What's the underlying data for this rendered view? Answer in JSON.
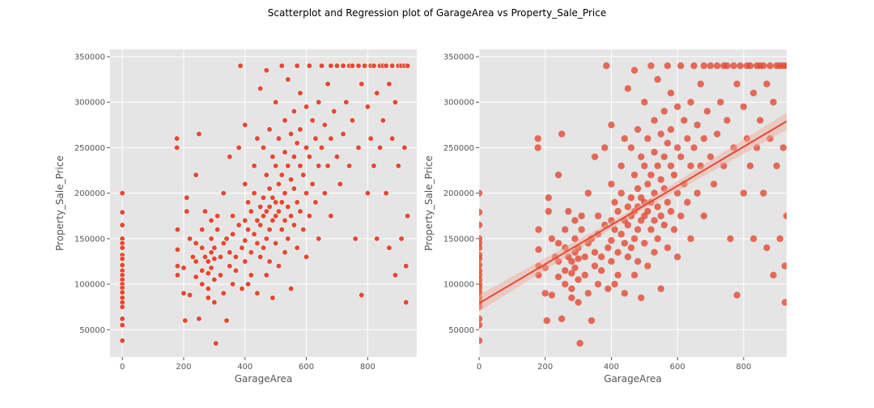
{
  "figure": {
    "title": "Scatterplot and Regression plot of GarageArea vs Property_Sale_Price"
  },
  "style": {
    "panel_bg": "#e5e5e5",
    "grid_color": "#ffffff",
    "marker_color": "#e24a33",
    "ci_color": "#f0a697",
    "tick_color": "#555555"
  },
  "chart_data": [
    {
      "type": "scatter",
      "xlabel": "GarageArea",
      "ylabel": "Property_Sale_Price",
      "xlim": [
        -40,
        960
      ],
      "ylim": [
        20000,
        358000
      ],
      "xticks": [
        0,
        200,
        400,
        600,
        800
      ],
      "yticks": [
        50000,
        100000,
        150000,
        200000,
        250000,
        300000,
        350000
      ],
      "grid": true,
      "marker": "white-edged dots",
      "points": []
    },
    {
      "type": "scatter",
      "xlabel": "GarageArea",
      "ylabel": "Property_Sale_Price",
      "xlim": [
        0,
        930
      ],
      "ylim": [
        20000,
        358000
      ],
      "xticks": [
        0,
        200,
        400,
        600,
        800
      ],
      "yticks": [
        50000,
        100000,
        150000,
        200000,
        250000,
        300000,
        350000
      ],
      "grid": true,
      "marker": "semi-transparent dots",
      "regression": {
        "intercept": 79000,
        "slope": 215
      },
      "points": []
    }
  ],
  "sample": {
    "points": [
      [
        0,
        200000
      ],
      [
        0,
        179000
      ],
      [
        0,
        165000
      ],
      [
        0,
        150000
      ],
      [
        0,
        145000
      ],
      [
        0,
        140000
      ],
      [
        0,
        132000
      ],
      [
        0,
        128000
      ],
      [
        0,
        121000
      ],
      [
        0,
        115000
      ],
      [
        0,
        110000
      ],
      [
        0,
        105000
      ],
      [
        0,
        100000
      ],
      [
        0,
        96000
      ],
      [
        0,
        91000
      ],
      [
        0,
        85000
      ],
      [
        0,
        80000
      ],
      [
        0,
        75000
      ],
      [
        0,
        62000
      ],
      [
        0,
        55000
      ],
      [
        0,
        38000
      ],
      [
        180,
        160000
      ],
      [
        180,
        138000
      ],
      [
        180,
        120000
      ],
      [
        180,
        110000
      ],
      [
        178,
        260000
      ],
      [
        178,
        250000
      ],
      [
        200,
        118000
      ],
      [
        200,
        90000
      ],
      [
        205,
        60000
      ],
      [
        210,
        195000
      ],
      [
        210,
        180000
      ],
      [
        220,
        150000
      ],
      [
        220,
        88000
      ],
      [
        230,
        130000
      ],
      [
        240,
        220000
      ],
      [
        240,
        145000
      ],
      [
        240,
        125000
      ],
      [
        240,
        108000
      ],
      [
        250,
        265000
      ],
      [
        250,
        62000
      ],
      [
        260,
        160000
      ],
      [
        260,
        140000
      ],
      [
        260,
        115000
      ],
      [
        260,
        100000
      ],
      [
        270,
        180000
      ],
      [
        270,
        130000
      ],
      [
        280,
        125000
      ],
      [
        280,
        112000
      ],
      [
        280,
        95000
      ],
      [
        280,
        85000
      ],
      [
        290,
        170000
      ],
      [
        290,
        150000
      ],
      [
        290,
        135000
      ],
      [
        290,
        118000
      ],
      [
        300,
        140000
      ],
      [
        300,
        128000
      ],
      [
        300,
        105000
      ],
      [
        300,
        80000
      ],
      [
        305,
        35000
      ],
      [
        310,
        175000
      ],
      [
        310,
        160000
      ],
      [
        320,
        130000
      ],
      [
        320,
        110000
      ],
      [
        330,
        200000
      ],
      [
        330,
        145000
      ],
      [
        330,
        90000
      ],
      [
        340,
        150000
      ],
      [
        340,
        60000
      ],
      [
        350,
        240000
      ],
      [
        350,
        135000
      ],
      [
        350,
        120000
      ],
      [
        360,
        175000
      ],
      [
        360,
        155000
      ],
      [
        360,
        100000
      ],
      [
        370,
        130000
      ],
      [
        370,
        115000
      ],
      [
        380,
        250000
      ],
      [
        380,
        165000
      ],
      [
        385,
        340000
      ],
      [
        390,
        140000
      ],
      [
        390,
        95000
      ],
      [
        400,
        275000
      ],
      [
        400,
        210000
      ],
      [
        400,
        170000
      ],
      [
        400,
        148000
      ],
      [
        400,
        125000
      ],
      [
        410,
        190000
      ],
      [
        410,
        160000
      ],
      [
        410,
        100000
      ],
      [
        420,
        180000
      ],
      [
        420,
        135000
      ],
      [
        420,
        110000
      ],
      [
        430,
        230000
      ],
      [
        430,
        200000
      ],
      [
        430,
        155000
      ],
      [
        440,
        260000
      ],
      [
        440,
        170000
      ],
      [
        440,
        145000
      ],
      [
        440,
        90000
      ],
      [
        450,
        315000
      ],
      [
        450,
        185000
      ],
      [
        450,
        165000
      ],
      [
        450,
        130000
      ],
      [
        460,
        250000
      ],
      [
        460,
        195000
      ],
      [
        460,
        175000
      ],
      [
        460,
        140000
      ],
      [
        470,
        335000
      ],
      [
        470,
        220000
      ],
      [
        470,
        180000
      ],
      [
        470,
        150000
      ],
      [
        470,
        110000
      ],
      [
        480,
        270000
      ],
      [
        480,
        205000
      ],
      [
        480,
        185000
      ],
      [
        480,
        160000
      ],
      [
        480,
        125000
      ],
      [
        490,
        240000
      ],
      [
        490,
        195000
      ],
      [
        490,
        170000
      ],
      [
        490,
        85000
      ],
      [
        500,
        300000
      ],
      [
        500,
        230000
      ],
      [
        500,
        190000
      ],
      [
        500,
        175000
      ],
      [
        500,
        145000
      ],
      [
        510,
        260000
      ],
      [
        510,
        210000
      ],
      [
        510,
        180000
      ],
      [
        510,
        120000
      ],
      [
        520,
        340000
      ],
      [
        520,
        220000
      ],
      [
        520,
        190000
      ],
      [
        520,
        160000
      ],
      [
        530,
        280000
      ],
      [
        530,
        245000
      ],
      [
        530,
        200000
      ],
      [
        530,
        170000
      ],
      [
        530,
        135000
      ],
      [
        540,
        325000
      ],
      [
        540,
        230000
      ],
      [
        540,
        185000
      ],
      [
        540,
        150000
      ],
      [
        550,
        265000
      ],
      [
        550,
        215000
      ],
      [
        550,
        175000
      ],
      [
        550,
        95000
      ],
      [
        560,
        290000
      ],
      [
        560,
        240000
      ],
      [
        560,
        205000
      ],
      [
        560,
        165000
      ],
      [
        570,
        340000
      ],
      [
        570,
        255000
      ],
      [
        570,
        190000
      ],
      [
        570,
        140000
      ],
      [
        580,
        310000
      ],
      [
        580,
        270000
      ],
      [
        580,
        230000
      ],
      [
        580,
        180000
      ],
      [
        590,
        220000
      ],
      [
        590,
        160000
      ],
      [
        600,
        295000
      ],
      [
        600,
        250000
      ],
      [
        600,
        200000
      ],
      [
        600,
        130000
      ],
      [
        610,
        340000
      ],
      [
        610,
        240000
      ],
      [
        610,
        175000
      ],
      [
        620,
        280000
      ],
      [
        620,
        210000
      ],
      [
        630,
        260000
      ],
      [
        630,
        190000
      ],
      [
        640,
        300000
      ],
      [
        640,
        230000
      ],
      [
        640,
        150000
      ],
      [
        650,
        340000
      ],
      [
        650,
        250000
      ],
      [
        660,
        275000
      ],
      [
        660,
        200000
      ],
      [
        670,
        320000
      ],
      [
        670,
        230000
      ],
      [
        680,
        340000
      ],
      [
        680,
        260000
      ],
      [
        680,
        175000
      ],
      [
        690,
        290000
      ],
      [
        700,
        340000
      ],
      [
        700,
        240000
      ],
      [
        710,
        210000
      ],
      [
        720,
        340000
      ],
      [
        720,
        265000
      ],
      [
        730,
        300000
      ],
      [
        740,
        340000
      ],
      [
        740,
        230000
      ],
      [
        750,
        340000
      ],
      [
        750,
        280000
      ],
      [
        760,
        150000
      ],
      [
        770,
        340000
      ],
      [
        770,
        250000
      ],
      [
        780,
        320000
      ],
      [
        780,
        88000
      ],
      [
        790,
        340000
      ],
      [
        800,
        295000
      ],
      [
        800,
        200000
      ],
      [
        810,
        340000
      ],
      [
        810,
        260000
      ],
      [
        820,
        340000
      ],
      [
        820,
        230000
      ],
      [
        830,
        310000
      ],
      [
        830,
        150000
      ],
      [
        840,
        340000
      ],
      [
        840,
        250000
      ],
      [
        850,
        340000
      ],
      [
        850,
        280000
      ],
      [
        860,
        340000
      ],
      [
        860,
        200000
      ],
      [
        870,
        320000
      ],
      [
        870,
        140000
      ],
      [
        880,
        340000
      ],
      [
        880,
        260000
      ],
      [
        890,
        300000
      ],
      [
        890,
        110000
      ],
      [
        900,
        340000
      ],
      [
        900,
        230000
      ],
      [
        910,
        340000
      ],
      [
        910,
        150000
      ],
      [
        920,
        340000
      ],
      [
        920,
        250000
      ],
      [
        925,
        80000
      ],
      [
        925,
        120000
      ],
      [
        930,
        340000
      ],
      [
        930,
        175000
      ]
    ]
  }
}
